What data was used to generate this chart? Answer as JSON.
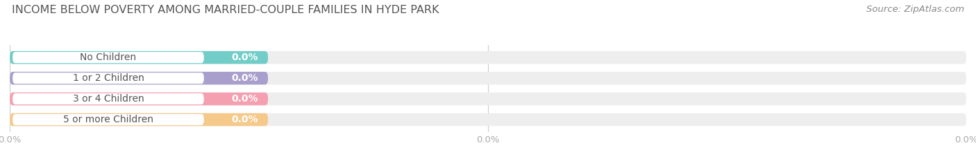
{
  "title": "INCOME BELOW POVERTY AMONG MARRIED-COUPLE FAMILIES IN HYDE PARK",
  "source_text": "Source: ZipAtlas.com",
  "categories": [
    "No Children",
    "1 or 2 Children",
    "3 or 4 Children",
    "5 or more Children"
  ],
  "values": [
    0.0,
    0.0,
    0.0,
    0.0
  ],
  "bar_colors": [
    "#72cdc8",
    "#a99fcc",
    "#f4a0b0",
    "#f5c98a"
  ],
  "bar_bg_color": "#eeeeee",
  "background_color": "#ffffff",
  "title_fontsize": 11.5,
  "source_fontsize": 9.5,
  "tick_fontsize": 9.5,
  "label_fontsize": 10,
  "value_fontsize": 10,
  "label_color": "#555555",
  "tick_color": "#aaaaaa",
  "source_color": "#888888",
  "title_color": "#555555",
  "grid_color": "#cccccc"
}
